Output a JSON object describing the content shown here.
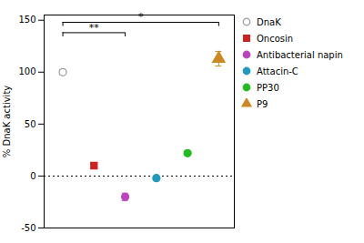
{
  "chart_data": {
    "type": "scatter",
    "ylabel": "% DnaK activity",
    "series": [
      {
        "name": "DnaK",
        "color": "#999999",
        "marker": "hollow_circle",
        "values": [
          100
        ],
        "errors": [
          2.5
        ]
      },
      {
        "name": "Oncosin",
        "color": "#cc2222",
        "marker": "square",
        "values": [
          10
        ],
        "errors": [
          3.0
        ]
      },
      {
        "name": "Antibacterial napin",
        "color": "#bb44bb",
        "marker": "circle",
        "values": [
          -20
        ],
        "errors": [
          3.5
        ]
      },
      {
        "name": "Attacin-C",
        "color": "#2299bb",
        "marker": "circle",
        "values": [
          -2
        ],
        "errors": [
          1.5
        ]
      },
      {
        "name": "PP30",
        "color": "#22bb22",
        "marker": "circle",
        "values": [
          22
        ],
        "errors": [
          2.0
        ]
      },
      {
        "name": "P9",
        "color": "#cc8822",
        "marker": "triangle",
        "values": [
          113
        ],
        "errors": [
          7.0
        ]
      }
    ],
    "ylim": [
      -50,
      155
    ],
    "yticks": [
      -50,
      0,
      50,
      100,
      150
    ],
    "tick_labels": "y",
    "legend": "right",
    "reference_y": 0,
    "annotations": [
      {
        "text": "*",
        "from": "DnaK",
        "to": "P9",
        "y": 148
      },
      {
        "text": "**",
        "from": "DnaK",
        "to": "Antibacterial napin",
        "y": 138
      }
    ]
  }
}
